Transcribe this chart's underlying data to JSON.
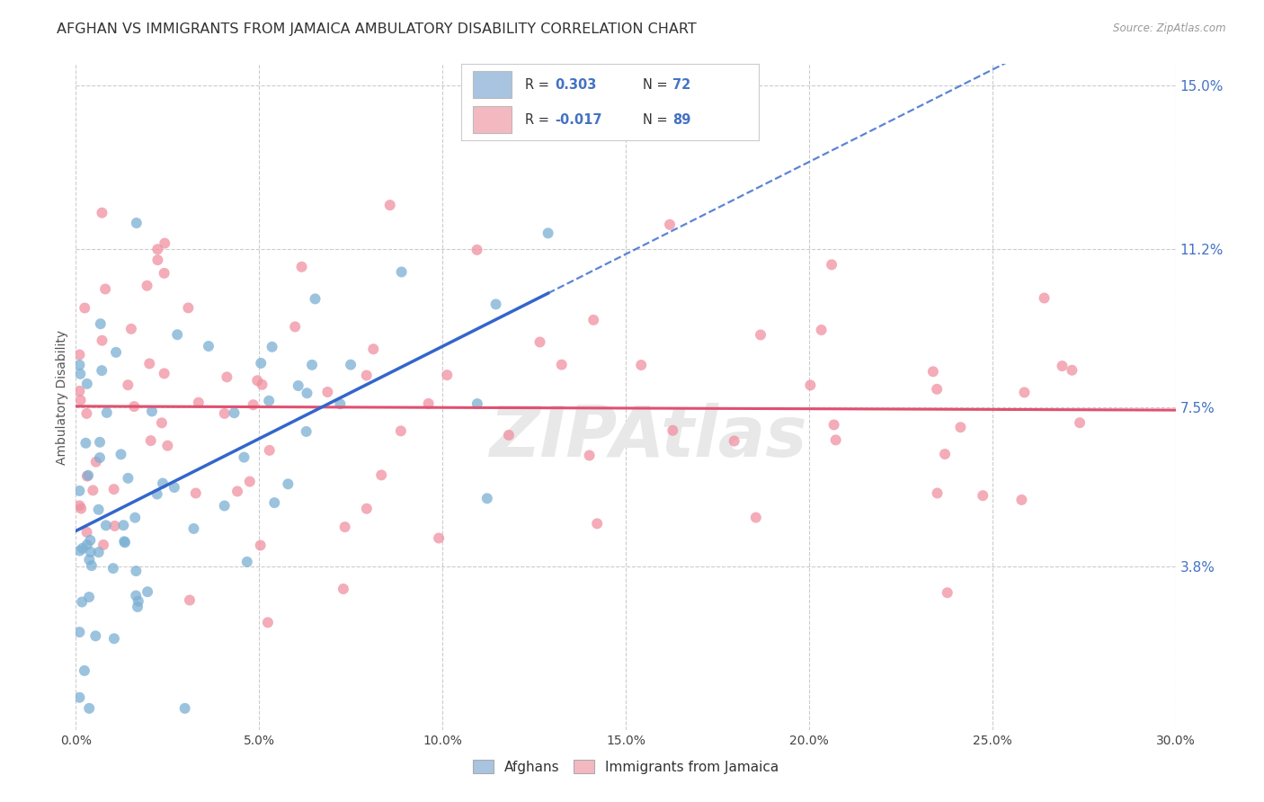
{
  "title": "AFGHAN VS IMMIGRANTS FROM JAMAICA AMBULATORY DISABILITY CORRELATION CHART",
  "source": "Source: ZipAtlas.com",
  "xlabel_vals": [
    0.0,
    0.05,
    0.1,
    0.15,
    0.2,
    0.25,
    0.3
  ],
  "ylabel_ticks": [
    "3.8%",
    "7.5%",
    "11.2%",
    "15.0%"
  ],
  "ylabel_vals": [
    0.038,
    0.075,
    0.112,
    0.15
  ],
  "xmin": 0.0,
  "xmax": 0.3,
  "ymin": 0.0,
  "ymax": 0.155,
  "afghan_R": 0.303,
  "afghan_N": 72,
  "jamaica_R": -0.017,
  "jamaica_N": 89,
  "afghan_dot_color": "#7bafd4",
  "jamaica_dot_color": "#f090a0",
  "afghan_legend_color": "#a8c4e0",
  "jamaica_legend_color": "#f4b8c1",
  "afghan_line_color": "#3366cc",
  "jamaica_line_color": "#e05070",
  "title_fontsize": 11.5,
  "tick_fontsize": 10,
  "grid_color": "#cccccc",
  "background_color": "#ffffff"
}
